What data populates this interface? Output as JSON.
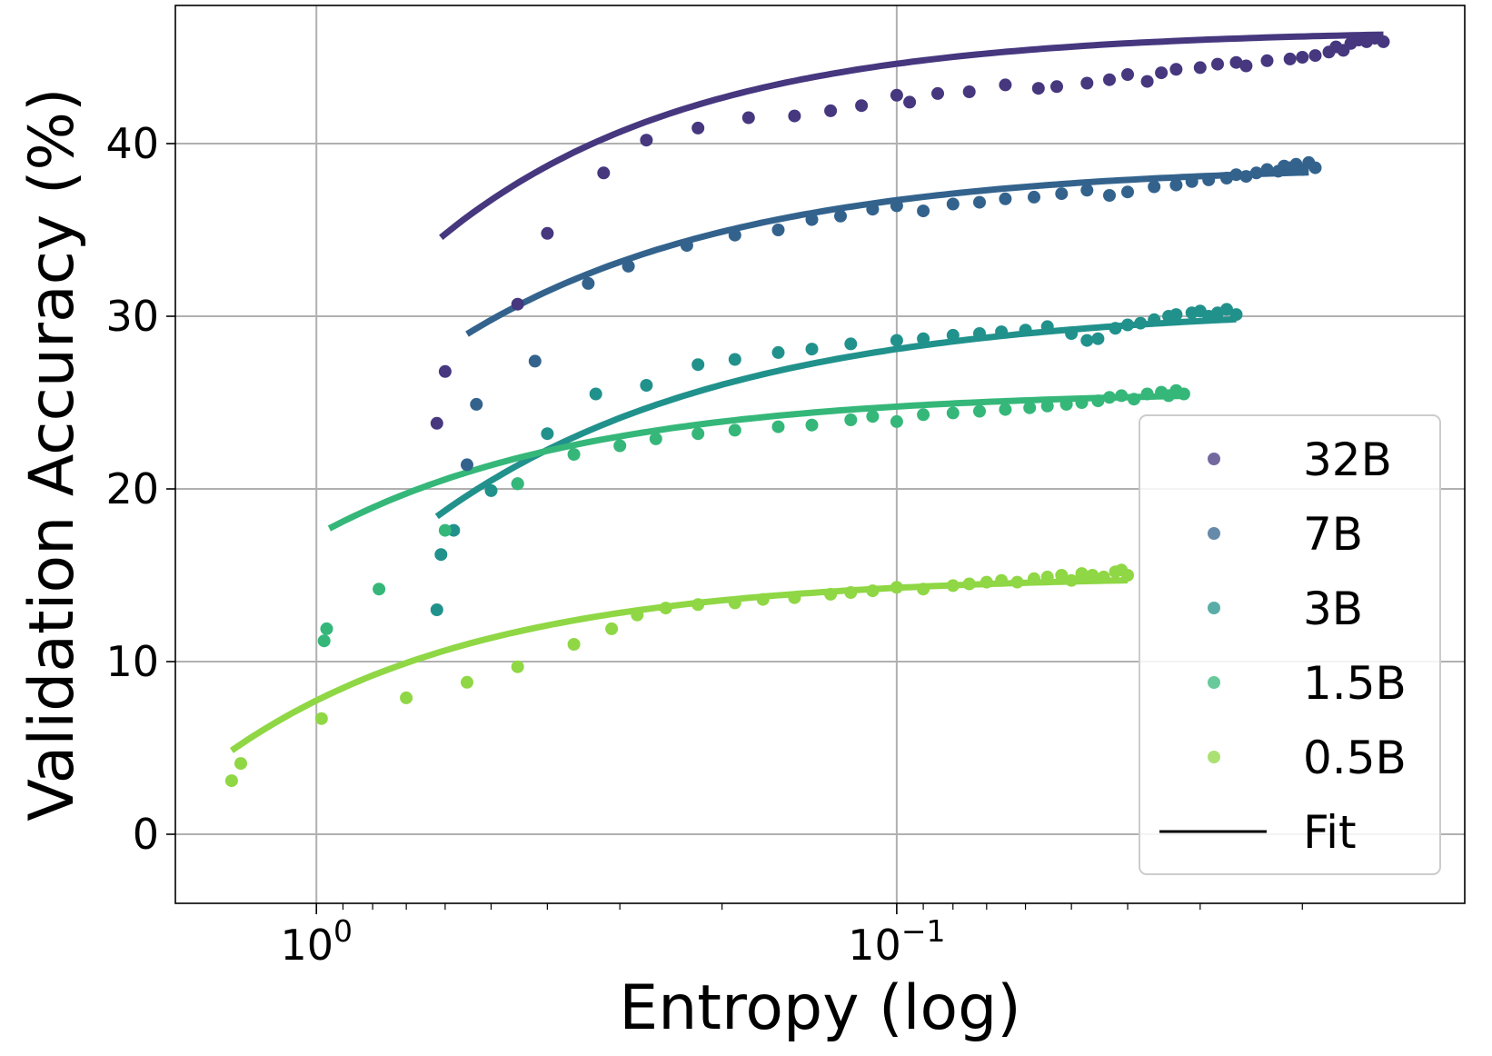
{
  "chart_data": {
    "type": "scatter",
    "xlabel": "Entropy (log)",
    "ylabel": "Validation Accuracy (%)",
    "x_scale": "log",
    "x_reversed": true,
    "xlim": [
      1.75,
      0.0105
    ],
    "ylim": [
      -4,
      48
    ],
    "x_ticks": [
      {
        "value": 1.0,
        "base": "10",
        "exp": "0"
      },
      {
        "value": 0.1,
        "base": "10",
        "exp": "−1"
      }
    ],
    "y_ticks": [
      0,
      10,
      20,
      30,
      40
    ],
    "grid": true,
    "legend_position": "lower right",
    "legend_fit_label": "Fit",
    "series": [
      {
        "name": "32B",
        "color": "#46377f",
        "points": [
          [
            0.62,
            23.8
          ],
          [
            0.6,
            26.8
          ],
          [
            0.45,
            30.7
          ],
          [
            0.4,
            34.8
          ],
          [
            0.32,
            38.3
          ],
          [
            0.27,
            40.2
          ],
          [
            0.22,
            40.9
          ],
          [
            0.18,
            41.5
          ],
          [
            0.15,
            41.6
          ],
          [
            0.13,
            41.9
          ],
          [
            0.115,
            42.2
          ],
          [
            0.1,
            42.8
          ],
          [
            0.095,
            42.4
          ],
          [
            0.085,
            42.9
          ],
          [
            0.075,
            43.0
          ],
          [
            0.065,
            43.4
          ],
          [
            0.057,
            43.2
          ],
          [
            0.053,
            43.3
          ],
          [
            0.047,
            43.5
          ],
          [
            0.043,
            43.7
          ],
          [
            0.04,
            44.0
          ],
          [
            0.037,
            43.6
          ],
          [
            0.035,
            44.1
          ],
          [
            0.033,
            44.3
          ],
          [
            0.03,
            44.4
          ],
          [
            0.028,
            44.6
          ],
          [
            0.026,
            44.7
          ],
          [
            0.025,
            44.5
          ],
          [
            0.023,
            44.8
          ],
          [
            0.021,
            44.9
          ],
          [
            0.02,
            45.0
          ],
          [
            0.019,
            45.1
          ],
          [
            0.018,
            45.3
          ],
          [
            0.0175,
            45.6
          ],
          [
            0.017,
            45.4
          ],
          [
            0.0165,
            45.8
          ],
          [
            0.016,
            46.0
          ],
          [
            0.0155,
            45.9
          ],
          [
            0.015,
            46.1
          ],
          [
            0.0145,
            45.9
          ]
        ],
        "fit": {
          "a": 46.6,
          "b": 36.7,
          "c": 2.3,
          "x0": 0.61,
          "x1": 0.0145
        }
      },
      {
        "name": "7B",
        "color": "#33638d",
        "points": [
          [
            0.55,
            21.4
          ],
          [
            0.53,
            24.9
          ],
          [
            0.42,
            27.4
          ],
          [
            0.34,
            31.9
          ],
          [
            0.29,
            32.9
          ],
          [
            0.23,
            34.1
          ],
          [
            0.19,
            34.7
          ],
          [
            0.16,
            35.0
          ],
          [
            0.14,
            35.6
          ],
          [
            0.125,
            35.8
          ],
          [
            0.11,
            36.2
          ],
          [
            0.1,
            36.4
          ],
          [
            0.09,
            36.1
          ],
          [
            0.08,
            36.5
          ],
          [
            0.072,
            36.6
          ],
          [
            0.065,
            36.8
          ],
          [
            0.058,
            36.9
          ],
          [
            0.052,
            37.1
          ],
          [
            0.047,
            37.3
          ],
          [
            0.043,
            37.0
          ],
          [
            0.04,
            37.2
          ],
          [
            0.036,
            37.5
          ],
          [
            0.033,
            37.6
          ],
          [
            0.031,
            37.8
          ],
          [
            0.029,
            37.9
          ],
          [
            0.027,
            38.0
          ],
          [
            0.026,
            38.2
          ],
          [
            0.025,
            38.1
          ],
          [
            0.024,
            38.3
          ],
          [
            0.023,
            38.5
          ],
          [
            0.022,
            38.4
          ],
          [
            0.0215,
            38.7
          ],
          [
            0.021,
            38.6
          ],
          [
            0.0205,
            38.8
          ],
          [
            0.02,
            38.5
          ],
          [
            0.0195,
            38.9
          ],
          [
            0.019,
            38.6
          ]
        ],
        "fit": {
          "a": 38.8,
          "b": 29.9,
          "c": 2.1,
          "x0": 0.55,
          "x1": 0.0195
        }
      },
      {
        "name": "3B",
        "color": "#21918c",
        "points": [
          [
            0.62,
            13.0
          ],
          [
            0.61,
            16.2
          ],
          [
            0.58,
            17.6
          ],
          [
            0.5,
            19.9
          ],
          [
            0.45,
            20.3
          ],
          [
            0.4,
            23.2
          ],
          [
            0.33,
            25.5
          ],
          [
            0.27,
            26.0
          ],
          [
            0.22,
            27.2
          ],
          [
            0.19,
            27.5
          ],
          [
            0.16,
            27.9
          ],
          [
            0.14,
            28.1
          ],
          [
            0.12,
            28.4
          ],
          [
            0.1,
            28.6
          ],
          [
            0.09,
            28.7
          ],
          [
            0.08,
            28.9
          ],
          [
            0.072,
            29.0
          ],
          [
            0.066,
            29.1
          ],
          [
            0.06,
            29.2
          ],
          [
            0.055,
            29.4
          ],
          [
            0.05,
            29.0
          ],
          [
            0.047,
            28.6
          ],
          [
            0.045,
            28.7
          ],
          [
            0.042,
            29.3
          ],
          [
            0.04,
            29.5
          ],
          [
            0.038,
            29.6
          ],
          [
            0.036,
            29.8
          ],
          [
            0.034,
            30.0
          ],
          [
            0.033,
            30.1
          ],
          [
            0.031,
            30.2
          ],
          [
            0.03,
            30.3
          ],
          [
            0.029,
            30.0
          ],
          [
            0.028,
            30.2
          ],
          [
            0.027,
            30.4
          ],
          [
            0.026,
            30.1
          ]
        ],
        "fit": {
          "a": 30.6,
          "b": 31.7,
          "c": 2.0,
          "x0": 0.62,
          "x1": 0.026
        }
      },
      {
        "name": "1.5B",
        "color": "#35b779",
        "points": [
          [
            0.97,
            11.2
          ],
          [
            0.96,
            11.9
          ],
          [
            0.78,
            14.2
          ],
          [
            0.6,
            17.6
          ],
          [
            0.45,
            20.3
          ],
          [
            0.36,
            22.0
          ],
          [
            0.3,
            22.5
          ],
          [
            0.26,
            22.9
          ],
          [
            0.22,
            23.2
          ],
          [
            0.19,
            23.4
          ],
          [
            0.16,
            23.6
          ],
          [
            0.14,
            23.7
          ],
          [
            0.12,
            24.0
          ],
          [
            0.11,
            24.2
          ],
          [
            0.1,
            23.9
          ],
          [
            0.09,
            24.3
          ],
          [
            0.08,
            24.4
          ],
          [
            0.072,
            24.5
          ],
          [
            0.065,
            24.6
          ],
          [
            0.059,
            24.7
          ],
          [
            0.055,
            24.8
          ],
          [
            0.051,
            24.9
          ],
          [
            0.048,
            25.0
          ],
          [
            0.045,
            25.1
          ],
          [
            0.043,
            25.3
          ],
          [
            0.041,
            25.4
          ],
          [
            0.039,
            25.2
          ],
          [
            0.037,
            25.5
          ],
          [
            0.035,
            25.6
          ],
          [
            0.034,
            25.4
          ],
          [
            0.033,
            25.7
          ],
          [
            0.032,
            25.5
          ]
        ],
        "fit": {
          "a": 25.7,
          "b": 15.2,
          "c": 2.2,
          "x0": 0.95,
          "x1": 0.032
        }
      },
      {
        "name": "0.5B",
        "color": "#8fd744",
        "points": [
          [
            1.4,
            3.1
          ],
          [
            1.35,
            4.1
          ],
          [
            0.98,
            6.7
          ],
          [
            0.7,
            7.9
          ],
          [
            0.55,
            8.8
          ],
          [
            0.45,
            9.7
          ],
          [
            0.36,
            11.0
          ],
          [
            0.31,
            11.9
          ],
          [
            0.28,
            12.7
          ],
          [
            0.25,
            13.1
          ],
          [
            0.22,
            13.3
          ],
          [
            0.19,
            13.4
          ],
          [
            0.17,
            13.6
          ],
          [
            0.15,
            13.7
          ],
          [
            0.13,
            13.9
          ],
          [
            0.12,
            14.0
          ],
          [
            0.11,
            14.1
          ],
          [
            0.1,
            14.3
          ],
          [
            0.09,
            14.2
          ],
          [
            0.08,
            14.4
          ],
          [
            0.075,
            14.5
          ],
          [
            0.07,
            14.6
          ],
          [
            0.066,
            14.7
          ],
          [
            0.062,
            14.6
          ],
          [
            0.058,
            14.8
          ],
          [
            0.055,
            14.9
          ],
          [
            0.052,
            15.0
          ],
          [
            0.05,
            14.7
          ],
          [
            0.048,
            15.1
          ],
          [
            0.046,
            15.0
          ],
          [
            0.044,
            14.9
          ],
          [
            0.042,
            15.2
          ],
          [
            0.041,
            15.3
          ],
          [
            0.04,
            15.0
          ]
        ],
        "fit": {
          "a": 15.0,
          "b": 13.5,
          "c": 2.3,
          "x0": 1.4,
          "x1": 0.04
        }
      }
    ]
  }
}
